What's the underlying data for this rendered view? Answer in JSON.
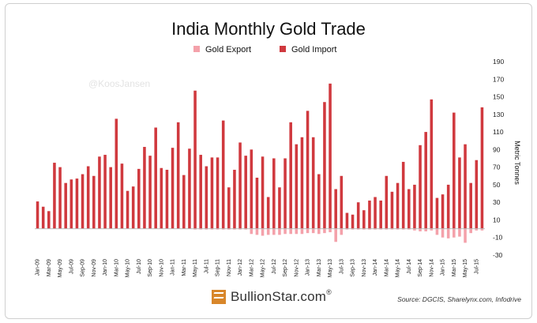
{
  "watermark": "@KoosJansen",
  "logo_text": "BullionStar.com",
  "logo_reg": "®",
  "logo_icon": "bullionstar-logo-icon",
  "source": "Source: DGCIS, Sharelynx.com, Infodrive",
  "chart_data": {
    "type": "bar",
    "title": "India Monthly Gold Trade",
    "ylabel": "Metric Tonnes",
    "ylim": [
      -30,
      190
    ],
    "yticks": [
      -30,
      -10,
      10,
      30,
      50,
      70,
      90,
      110,
      130,
      150,
      170,
      190
    ],
    "grid": false,
    "legend_position": "top-center",
    "colors": {
      "export": "#f4a1aa",
      "import": "#d0393e"
    },
    "categories": [
      "Jan-09",
      "Feb-09",
      "Mar-09",
      "Apr-09",
      "May-09",
      "Jun-09",
      "Jul-09",
      "Aug-09",
      "Sep-09",
      "Oct-09",
      "Nov-09",
      "Dec-09",
      "Jan-10",
      "Feb-10",
      "Mar-10",
      "Apr-10",
      "May-10",
      "Jun-10",
      "Jul-10",
      "Aug-10",
      "Sep-10",
      "Oct-10",
      "Nov-10",
      "Dec-10",
      "Jan-11",
      "Feb-11",
      "Mar-11",
      "Apr-11",
      "May-11",
      "Jun-11",
      "Jul-11",
      "Aug-11",
      "Sep-11",
      "Oct-11",
      "Nov-11",
      "Dec-11",
      "Jan-12",
      "Feb-12",
      "Mar-12",
      "Apr-12",
      "May-12",
      "Jun-12",
      "Jul-12",
      "Aug-12",
      "Sep-12",
      "Oct-12",
      "Nov-12",
      "Dec-12",
      "Jan-13",
      "Feb-13",
      "Mar-13",
      "Apr-13",
      "May-13",
      "Jun-13",
      "Jul-13",
      "Aug-13",
      "Sep-13",
      "Oct-13",
      "Nov-13",
      "Dec-13",
      "Jan-14",
      "Feb-14",
      "Mar-14",
      "Apr-14",
      "May-14",
      "Jun-14",
      "Jul-14",
      "Aug-14",
      "Sep-14",
      "Oct-14",
      "Nov-14",
      "Dec-14",
      "Jan-15",
      "Feb-15",
      "Mar-15",
      "Apr-15",
      "May-15",
      "Jun-15",
      "Jul-15",
      "Aug-15"
    ],
    "xtick_labels": [
      "Jan-09",
      "Mar-09",
      "May-09",
      "Jul-09",
      "Sep-09",
      "Nov-09",
      "Jan-10",
      "Mar-10",
      "May-10",
      "Jul-10",
      "Sep-10",
      "Nov-10",
      "Jan-11",
      "Mar-11",
      "May-11",
      "Jul-11",
      "Sep-11",
      "Nov-11",
      "Jan-12",
      "Mar-12",
      "May-12",
      "Jul-12",
      "Sep-12",
      "Nov-12",
      "Jan-13",
      "Mar-13",
      "May-13",
      "Jul-13",
      "Sep-13",
      "Nov-13",
      "Jan-14",
      "Mar-14",
      "May-14",
      "Jul-14",
      "Sep-14",
      "Nov-14",
      "Jan-15",
      "Mar-15",
      "May-15",
      "Jul-15"
    ],
    "series": [
      {
        "name": "Gold Export",
        "values": [
          0,
          0,
          0,
          0,
          0,
          0,
          0,
          0,
          0,
          0,
          0,
          0,
          0,
          0,
          0,
          0,
          0,
          0,
          0,
          0,
          0,
          0,
          0,
          0,
          0,
          0,
          0,
          0,
          -1,
          -1,
          -1,
          -1,
          -1,
          -1,
          -1,
          -1,
          -1,
          -1,
          -6,
          -7,
          -8,
          -7,
          -7,
          -7,
          -6,
          -6,
          -6,
          -6,
          -5,
          -5,
          -6,
          -5,
          -4,
          -15,
          -7,
          -1,
          -1,
          -1,
          -1,
          -1,
          -1,
          -1,
          -1,
          -1,
          -1,
          -1,
          -1,
          -2,
          -3,
          -3,
          -2,
          -7,
          -10,
          -11,
          -10,
          -9,
          -16,
          -5,
          -2,
          -2
        ]
      },
      {
        "name": "Gold Import",
        "values": [
          31,
          25,
          20,
          75,
          70,
          52,
          56,
          57,
          62,
          71,
          60,
          82,
          84,
          70,
          125,
          74,
          43,
          48,
          68,
          93,
          83,
          115,
          69,
          67,
          92,
          121,
          61,
          91,
          157,
          84,
          71,
          81,
          81,
          123,
          47,
          67,
          98,
          83,
          90,
          58,
          82,
          36,
          80,
          47,
          80,
          121,
          96,
          104,
          134,
          104,
          62,
          144,
          165,
          45,
          60,
          18,
          16,
          30,
          21,
          32,
          36,
          32,
          60,
          42,
          52,
          76,
          45,
          50,
          95,
          110,
          147,
          35,
          39,
          50,
          132,
          81,
          96,
          52,
          78,
          138
        ]
      }
    ]
  }
}
